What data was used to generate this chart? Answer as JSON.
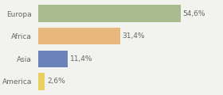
{
  "categories": [
    "Europa",
    "Africa",
    "Asia",
    "America"
  ],
  "values": [
    54.6,
    31.4,
    11.4,
    2.6
  ],
  "labels": [
    "54,6%",
    "31,4%",
    "11,4%",
    "2,6%"
  ],
  "bar_colors": [
    "#a8bc8f",
    "#e8b87d",
    "#6b82b8",
    "#e8d060"
  ],
  "background_color": "#f2f2ee",
  "xlim": [
    0,
    70
  ],
  "bar_height": 0.75,
  "label_fontsize": 6.5,
  "category_fontsize": 6.5,
  "text_color": "#666666"
}
